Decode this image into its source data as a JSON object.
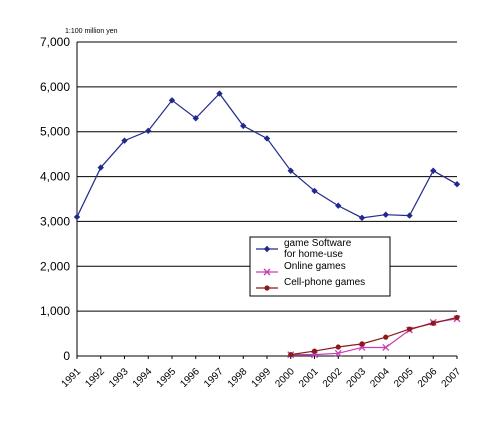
{
  "chart_data": {
    "type": "line",
    "unit_label": "1:100 million yen",
    "x": [
      "1991",
      "1992",
      "1993",
      "1994",
      "1995",
      "1996",
      "1997",
      "1998",
      "1999",
      "2000",
      "2001",
      "2002",
      "2003",
      "2004",
      "2005",
      "2006",
      "2007"
    ],
    "ylim": [
      0,
      7000
    ],
    "yticks": [
      "0",
      "1,000",
      "2,000",
      "3,000",
      "4,000",
      "5,000",
      "6,000",
      "7,000"
    ],
    "grid": true,
    "legend_position": "center-right",
    "series": [
      {
        "name": "game Software\nfor home-use",
        "color": "#1f2a8c",
        "marker": "diamond",
        "values": [
          3100,
          4200,
          4800,
          5020,
          5700,
          5300,
          5850,
          5130,
          4850,
          4130,
          3680,
          3350,
          3080,
          3150,
          3130,
          4130,
          3830
        ]
      },
      {
        "name": "Online games",
        "color": "#c83cb4",
        "marker": "x",
        "values": [
          null,
          null,
          null,
          null,
          null,
          null,
          null,
          null,
          null,
          30,
          30,
          60,
          190,
          190,
          580,
          750,
          830
        ]
      },
      {
        "name": "Cell-phone games",
        "color": "#8b1a1a",
        "marker": "circle",
        "values": [
          null,
          null,
          null,
          null,
          null,
          null,
          null,
          null,
          null,
          30,
          110,
          200,
          270,
          420,
          600,
          730,
          860
        ]
      }
    ]
  }
}
